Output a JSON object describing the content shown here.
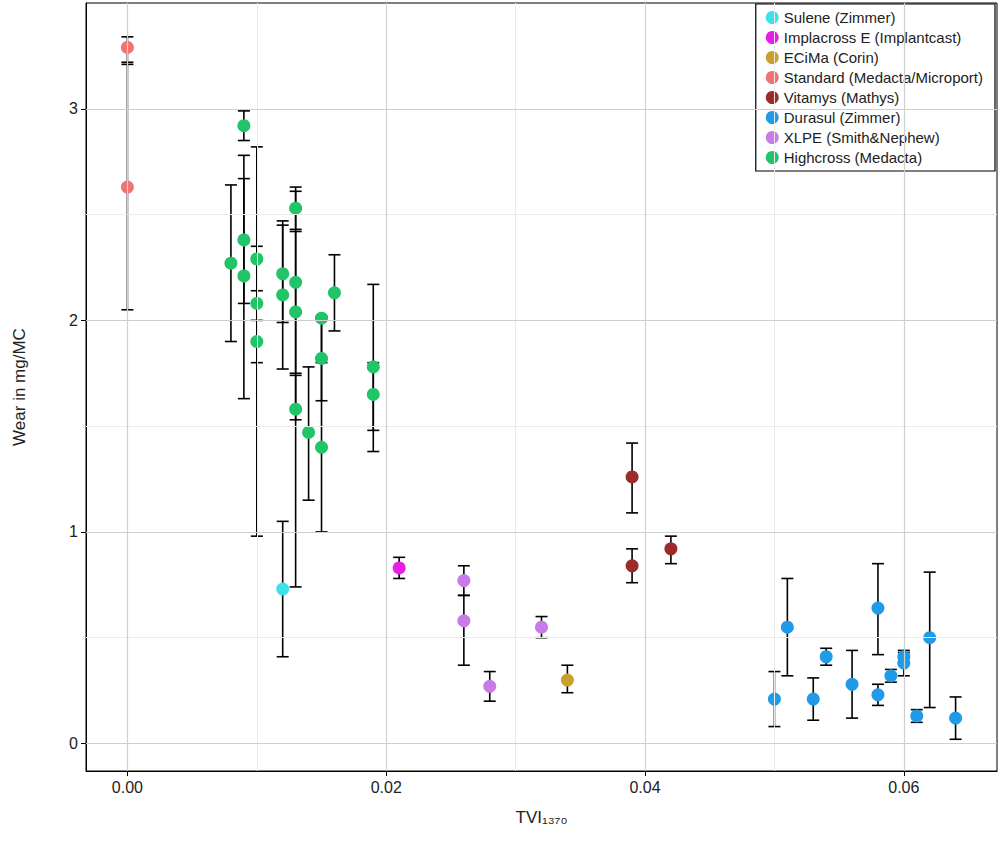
{
  "chart_data": {
    "type": "scatter",
    "x_label": "TVI₁₃₇₀",
    "y_label": "Wear in mg/MC",
    "xlim": [
      -0.0032,
      0.0672
    ],
    "ylim": [
      -0.13,
      3.5
    ],
    "xticks": [
      {
        "value": 0,
        "label": "0.00"
      },
      {
        "value": 0.02,
        "label": "0.02"
      },
      {
        "value": 0.04,
        "label": "0.04"
      },
      {
        "value": 0.06,
        "label": "0.06"
      }
    ],
    "yticks": [
      0,
      1,
      2,
      3
    ],
    "grid": true,
    "legend": "top-right",
    "marker": "circle",
    "series": [
      {
        "name": "Sulene (Zimmer)",
        "color": "#3ee0ea",
        "x": [
          0.012
        ],
        "values": [
          0.73
        ],
        "error_low": [
          0.41
        ],
        "error_high": [
          1.05
        ]
      },
      {
        "name": "Implacross E (Implantcast)",
        "color": "#e81ee8",
        "x": [
          0.021
        ],
        "values": [
          0.83
        ],
        "error_low": [
          0.78
        ],
        "error_high": [
          0.88
        ]
      },
      {
        "name": "ECiMa (Corin)",
        "color": "#c9a02c",
        "x": [
          0.034
        ],
        "values": [
          0.3
        ],
        "error_low": [
          0.24
        ],
        "error_high": [
          0.37
        ]
      },
      {
        "name": "Standard (Medacta/Microport)",
        "color": "#f07272",
        "x": [
          0,
          0
        ],
        "values": [
          3.29,
          2.63
        ],
        "error_low": [
          3.22,
          2.05
        ],
        "error_high": [
          3.34,
          3.21
        ]
      },
      {
        "name": "Vitamys (Mathys)",
        "color": "#9c2b2b",
        "x": [
          0.039,
          0.039,
          0.042
        ],
        "values": [
          1.26,
          0.84,
          0.92
        ],
        "error_low": [
          1.09,
          0.76,
          0.85
        ],
        "error_high": [
          1.42,
          0.92,
          0.98
        ]
      },
      {
        "name": "Durasul (Zimmer)",
        "color": "#1f9be8",
        "x": [
          0.05,
          0.051,
          0.053,
          0.054,
          0.056,
          0.058,
          0.058,
          0.059,
          0.06,
          0.06,
          0.061,
          0.062,
          0.064
        ],
        "values": [
          0.21,
          0.55,
          0.21,
          0.41,
          0.28,
          0.64,
          0.23,
          0.32,
          0.38,
          0.41,
          0.13,
          0.5,
          0.12
        ],
        "error_low": [
          0.08,
          0.32,
          0.11,
          0.37,
          0.12,
          0.42,
          0.18,
          0.29,
          0.32,
          0.38,
          0.1,
          0.17,
          0.02
        ],
        "error_high": [
          0.34,
          0.78,
          0.31,
          0.45,
          0.44,
          0.85,
          0.28,
          0.35,
          0.43,
          0.44,
          0.16,
          0.81,
          0.22
        ]
      },
      {
        "name": "XLPE (Smith&Nephew)",
        "color": "#c77ae8",
        "x": [
          0.026,
          0.026,
          0.028,
          0.032
        ],
        "values": [
          0.77,
          0.58,
          0.27,
          0.55
        ],
        "error_low": [
          0.7,
          0.37,
          0.2,
          0.5
        ],
        "error_high": [
          0.84,
          0.7,
          0.34,
          0.6
        ]
      },
      {
        "name": "Highcross (Medacta)",
        "color": "#22c46a",
        "x": [
          0.008,
          0.009,
          0.009,
          0.009,
          0.01,
          0.01,
          0.01,
          0.012,
          0.012,
          0.013,
          0.013,
          0.013,
          0.013,
          0.014,
          0.015,
          0.015,
          0.015,
          0.016,
          0.019,
          0.019
        ],
        "values": [
          2.27,
          2.92,
          2.38,
          2.21,
          2.29,
          2.08,
          1.9,
          2.22,
          2.12,
          2.53,
          2.18,
          2.04,
          1.58,
          1.47,
          2.01,
          1.82,
          1.4,
          2.13,
          1.78,
          1.65
        ],
        "error_low": [
          1.9,
          2.85,
          2.08,
          1.63,
          2.14,
          0.98,
          1.8,
          1.99,
          1.77,
          2.43,
          1.53,
          1.75,
          0.74,
          1.15,
          1.82,
          1.62,
          1.0,
          1.95,
          1.48,
          1.38
        ],
        "error_high": [
          2.64,
          2.99,
          2.78,
          2.67,
          2.35,
          2.82,
          2.0,
          2.45,
          2.47,
          2.63,
          2.61,
          2.42,
          1.74,
          1.78,
          2.02,
          2.01,
          1.8,
          2.31,
          2.17,
          1.8
        ]
      }
    ]
  }
}
